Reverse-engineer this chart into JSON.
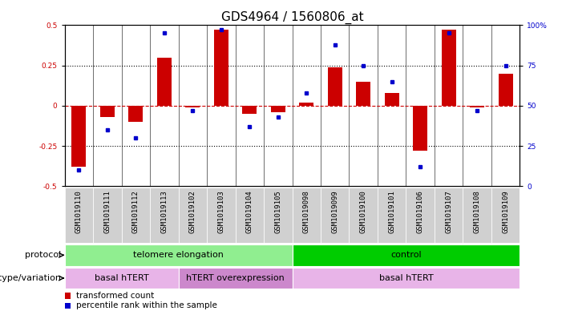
{
  "title": "GDS4964 / 1560806_at",
  "samples": [
    "GSM1019110",
    "GSM1019111",
    "GSM1019112",
    "GSM1019113",
    "GSM1019102",
    "GSM1019103",
    "GSM1019104",
    "GSM1019105",
    "GSM1019098",
    "GSM1019099",
    "GSM1019100",
    "GSM1019101",
    "GSM1019106",
    "GSM1019107",
    "GSM1019108",
    "GSM1019109"
  ],
  "bar_values": [
    -0.38,
    -0.07,
    -0.1,
    0.3,
    -0.01,
    0.47,
    -0.05,
    -0.04,
    0.02,
    0.24,
    0.15,
    0.08,
    -0.28,
    0.47,
    -0.01,
    0.2
  ],
  "dot_values": [
    10,
    35,
    30,
    95,
    47,
    97,
    37,
    43,
    58,
    88,
    75,
    65,
    12,
    95,
    47,
    75
  ],
  "ylim": [
    -0.5,
    0.5
  ],
  "yticks_left": [
    -0.5,
    -0.25,
    0,
    0.25,
    0.5
  ],
  "yticks_right": [
    0,
    25,
    50,
    75,
    100
  ],
  "bar_color": "#cc0000",
  "dot_color": "#0000cc",
  "zero_line_color": "#cc0000",
  "dotted_line_color": "#000000",
  "protocol_telomere_label": "telomere elongation",
  "protocol_control_label": "control",
  "genotype_basal1_label": "basal hTERT",
  "genotype_htert_label": "hTERT overexpression",
  "genotype_basal2_label": "basal hTERT",
  "protocol_row_label": "protocol",
  "genotype_row_label": "genotype/variation",
  "legend_bar_label": "transformed count",
  "legend_dot_label": "percentile rank within the sample",
  "telomere_color": "#90ee90",
  "control_color": "#00cc00",
  "basal_color": "#e8b4e8",
  "htert_color": "#cc88cc",
  "cell_bg_color": "#d0d0d0",
  "title_fontsize": 11,
  "tick_fontsize": 6.5,
  "annot_fontsize": 8
}
